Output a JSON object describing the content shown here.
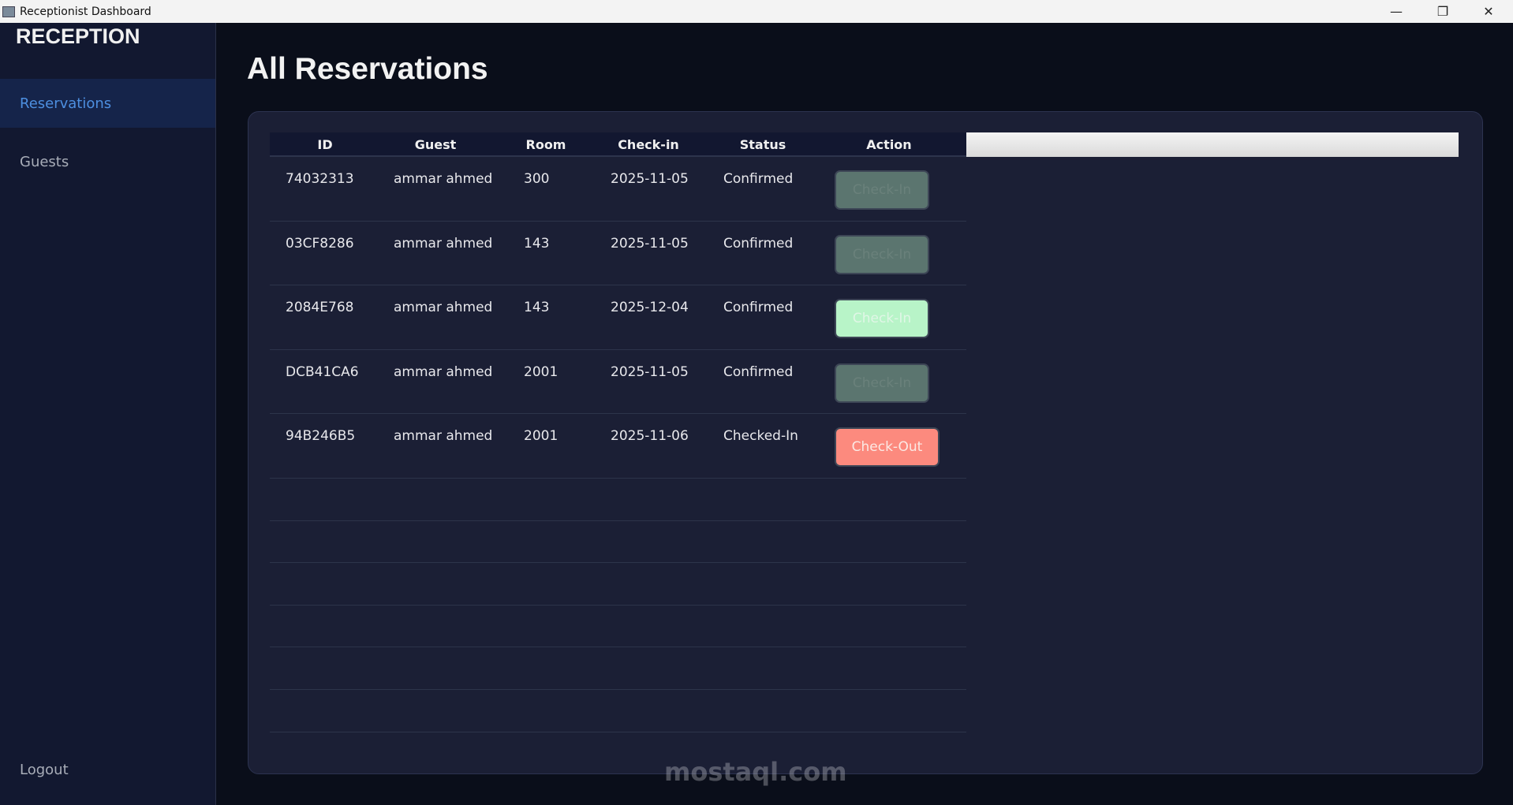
{
  "window": {
    "title": "Receptionist Dashboard",
    "controls": [
      "minimize",
      "restore",
      "close"
    ]
  },
  "sidebar": {
    "brand": "RECEPTION",
    "items": [
      {
        "label": "Reservations",
        "active": true
      },
      {
        "label": "Guests",
        "active": false
      }
    ],
    "logout": "Logout"
  },
  "main": {
    "title": "All Reservations"
  },
  "table": {
    "columns": [
      "ID",
      "Guest",
      "Room",
      "Check-in",
      "Status",
      "Action"
    ],
    "rows": [
      {
        "id": "74032313",
        "guest": "ammar ahmed",
        "room": "300",
        "checkin": "2025-11-05",
        "status": "Confirmed",
        "action": "Check-In",
        "action_state": "disabled"
      },
      {
        "id": "03CF8286",
        "guest": "ammar ahmed",
        "room": "143",
        "checkin": "2025-11-05",
        "status": "Confirmed",
        "action": "Check-In",
        "action_state": "disabled"
      },
      {
        "id": "2084E768",
        "guest": "ammar ahmed",
        "room": "143",
        "checkin": "2025-12-04",
        "status": "Confirmed",
        "action": "Check-In",
        "action_state": "enabled"
      },
      {
        "id": "DCB41CA6",
        "guest": "ammar ahmed",
        "room": "2001",
        "checkin": "2025-11-05",
        "status": "Confirmed",
        "action": "Check-In",
        "action_state": "disabled"
      },
      {
        "id": "94B246B5",
        "guest": "ammar ahmed",
        "room": "2001",
        "checkin": "2025-11-06",
        "status": "Checked-In",
        "action": "Check-Out",
        "action_state": "enabled"
      }
    ]
  },
  "colors": {
    "accent": "#4d8fe0",
    "checkin": "#b8f4c8",
    "checkout": "#fc8a7e",
    "disabled": "#5b756f"
  },
  "watermark": "mostaql.com"
}
